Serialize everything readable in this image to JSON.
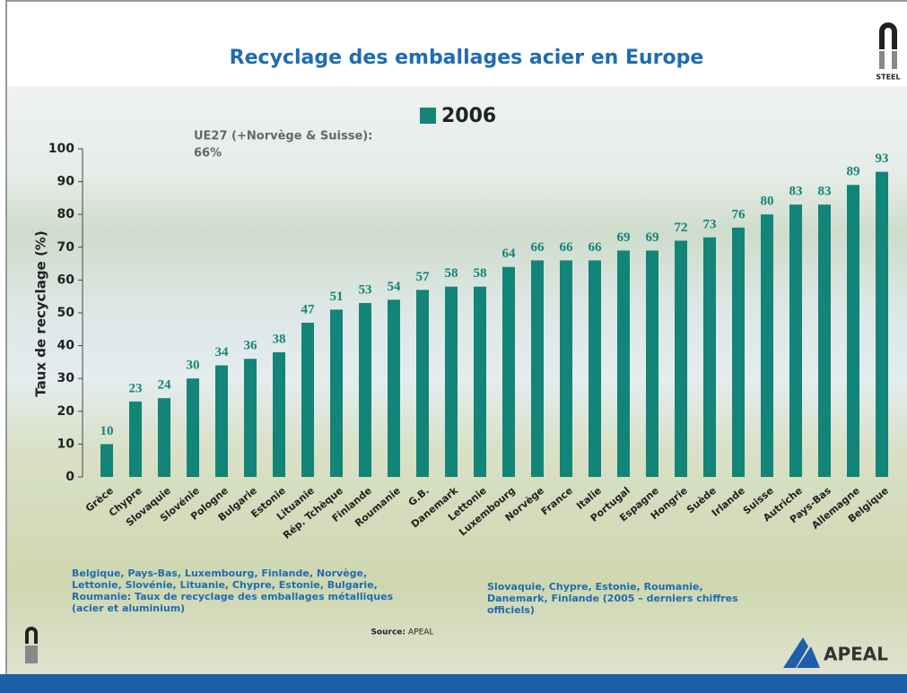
{
  "chart_data": {
    "type": "bar",
    "title": "Recyclage des emballages acier en Europe",
    "ylabel": "Taux de recyclage  (%)",
    "annotation": [
      "UE27 (+Norvège & Suisse):",
      "66%"
    ],
    "categories": [
      "Grèce",
      "Chypre",
      "Slovaquie",
      "Slovénie",
      "Pologne",
      "Bulgarie",
      "Estonie",
      "Lituanie",
      "Rép. Tchèque",
      "Finlande",
      "Roumanie",
      "G.B.",
      "Danemark",
      "Lettonie",
      "Luxembourg",
      "Norvège",
      "France",
      "Italie",
      "Portugal",
      "Espagne",
      "Hongrie",
      "Suède",
      "Irlande",
      "Suisse",
      "Autriche",
      "Pays-Bas",
      "Allemagne",
      "Belgique"
    ],
    "series": [
      {
        "name": "2006",
        "color": "#138478",
        "values": [
          10,
          23,
          24,
          30,
          34,
          36,
          38,
          47,
          51,
          53,
          54,
          57,
          58,
          58,
          64,
          66,
          66,
          66,
          69,
          69,
          72,
          73,
          76,
          80,
          83,
          83,
          89,
          93
        ]
      }
    ],
    "ylim": [
      0,
      100
    ],
    "yticks": [
      0,
      10,
      20,
      30,
      40,
      50,
      60,
      70,
      80,
      90,
      100
    ],
    "grid": false,
    "notes": [
      "Belgique, Pays-Bas, Luxembourg, Finlande, Norvège, Lettonie, Slovénie, Lituanie, Chypre, Estonie, Bulgarie, Roumanie: Taux de recyclage des emballages métalliques (acier et aluminium)",
      "Slovaquie, Chypre, Estonie, Roumanie, Danemark, Finlande (2005 – derniers chiffres officiels)"
    ],
    "source_label": "Source:",
    "source": "APEAL",
    "logo_text": "STEEL",
    "brand": "APEAL"
  }
}
